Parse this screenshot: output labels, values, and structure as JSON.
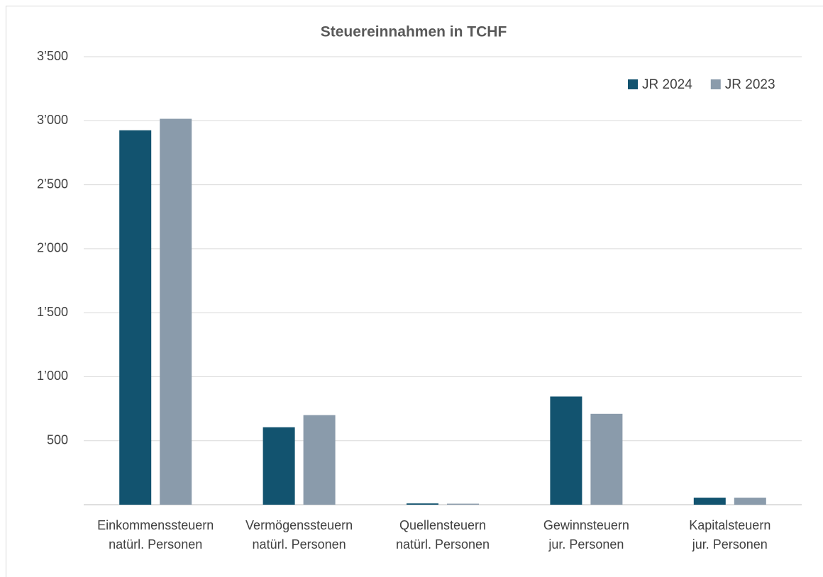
{
  "chart_data": {
    "type": "bar",
    "title": "Steuereinnahmen in TCHF",
    "categories": [
      [
        "Einkommenssteuern",
        "natürl. Personen"
      ],
      [
        "Vermögenssteuern",
        "natürl. Personen"
      ],
      [
        "Quellensteuern",
        "natürl. Personen"
      ],
      [
        "Gewinnsteuern",
        "jur. Personen"
      ],
      [
        "Kapitalsteuern",
        "jur. Personen"
      ]
    ],
    "series": [
      {
        "name": "JR 2024",
        "color": "#12536f",
        "values": [
          2925,
          605,
          10,
          845,
          55
        ]
      },
      {
        "name": "JR 2023",
        "color": "#8a9bab",
        "values": [
          3015,
          700,
          8,
          710,
          55
        ]
      }
    ],
    "ylim": [
      0,
      3500
    ],
    "yticks": [
      {
        "value": 500,
        "label": "500"
      },
      {
        "value": 1000,
        "label": "1’000"
      },
      {
        "value": 1500,
        "label": "1’500"
      },
      {
        "value": 2000,
        "label": "2’000"
      },
      {
        "value": 2500,
        "label": "2’500"
      },
      {
        "value": 3000,
        "label": "3’000"
      },
      {
        "value": 3500,
        "label": "3’500"
      }
    ],
    "grid": true,
    "legend": "top-right"
  }
}
